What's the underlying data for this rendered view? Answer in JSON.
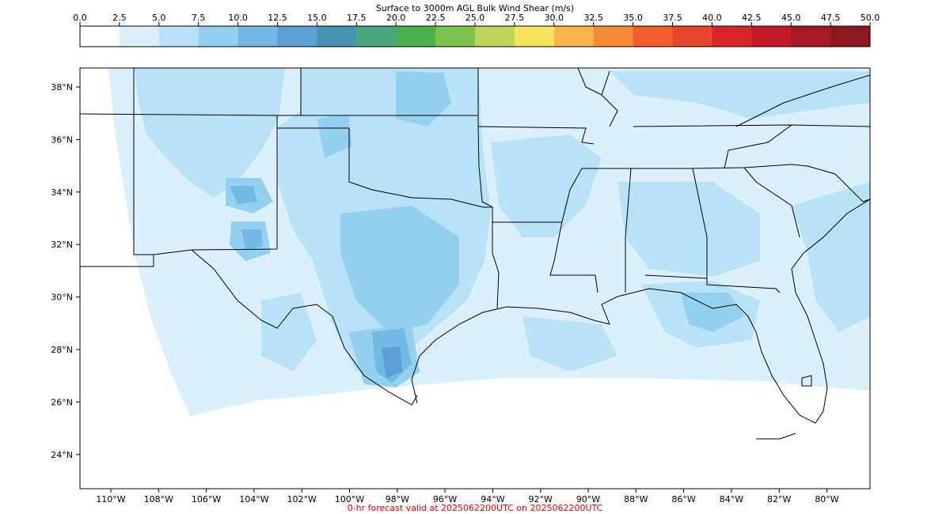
{
  "colorbar": {
    "title": "Surface to 3000m AGL Bulk Wind Shear (m/s)",
    "ticks": [
      "0.0",
      "2.5",
      "5.0",
      "7.5",
      "10.0",
      "12.5",
      "15.0",
      "17.5",
      "20.0",
      "22.5",
      "25.0",
      "27.5",
      "30.0",
      "32.5",
      "35.0",
      "37.5",
      "40.0",
      "42.5",
      "45.0",
      "47.5",
      "50.0"
    ],
    "colors": [
      "#ffffff",
      "#dbf0fb",
      "#b8e2f6",
      "#94d1f0",
      "#74b8e4",
      "#5b9fd7",
      "#4693b4",
      "#45a77a",
      "#47b14e",
      "#7dc24a",
      "#bcd658",
      "#f8e45a",
      "#f7b547",
      "#f68b36",
      "#f25e2c",
      "#e5462c",
      "#d92628",
      "#c21d27",
      "#a51a22",
      "#8e161e"
    ]
  },
  "map": {
    "lat_labels": [
      "38°N",
      "36°N",
      "34°N",
      "32°N",
      "30°N",
      "28°N",
      "26°N",
      "24°N"
    ],
    "lon_labels": [
      "110°W",
      "108°W",
      "106°W",
      "104°W",
      "102°W",
      "100°W",
      "98°W",
      "96°W",
      "94°W",
      "92°W",
      "90°W",
      "88°W",
      "86°W",
      "84°W",
      "82°W",
      "80°W"
    ],
    "field_color_light": "#dbf0fb",
    "field_color_mid": "#b8e2f6",
    "field_color_dark": "#94d1f0",
    "field_color_deep": "#74b8e4",
    "field_color_max": "#5b9fd7"
  },
  "footer": "0-hr forecast valid at 2025062200UTC on 2025062200UTC"
}
